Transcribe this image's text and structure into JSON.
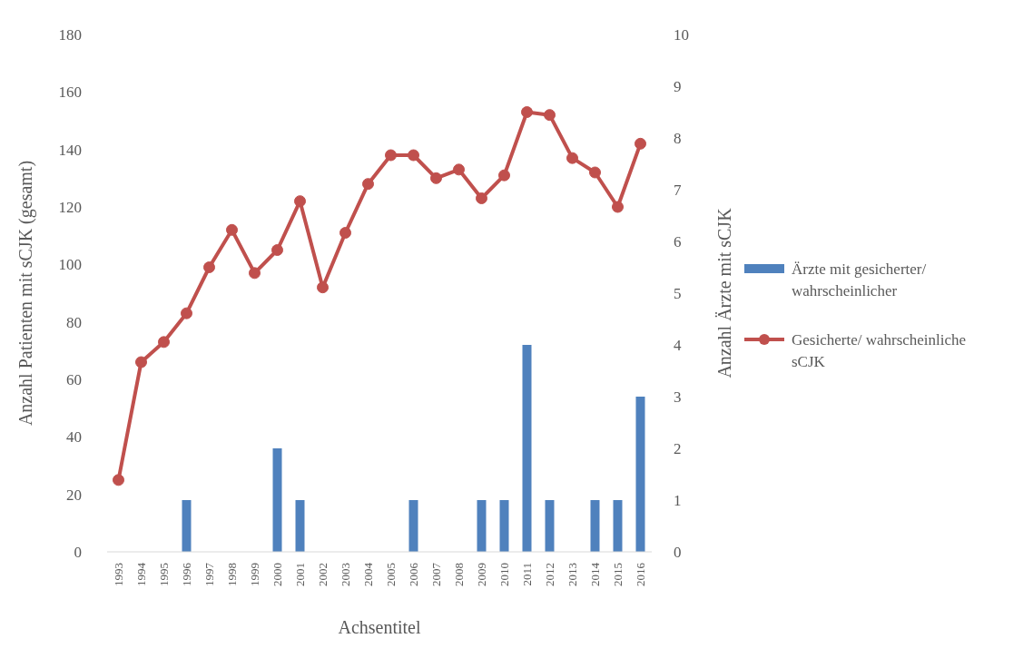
{
  "chart_data": {
    "type": "bar",
    "xlabel": "Achsentitel",
    "ylabel": "Anzahl Patienten mit sCJK (gesamt)",
    "y2label": "Anzahl Ärzte mit sCJK",
    "categories": [
      "1993",
      "1994",
      "1995",
      "1996",
      "1997",
      "1998",
      "1999",
      "2000",
      "2001",
      "2002",
      "2003",
      "2004",
      "2005",
      "2006",
      "2007",
      "2008",
      "2009",
      "2010",
      "2011",
      "2012",
      "2013",
      "2014",
      "2015",
      "2016"
    ],
    "series": [
      {
        "name": "Ärzte mit gesicherter/ wahrscheinlicher",
        "axis": "y2",
        "color": "#4f81bd",
        "values": [
          0,
          0,
          0,
          1,
          0,
          0,
          0,
          2,
          1,
          0,
          0,
          0,
          0,
          1,
          0,
          0,
          1,
          1,
          4,
          1,
          0,
          1,
          1,
          3
        ]
      },
      {
        "name": "Gesicherte/ wahrscheinliche sCJK",
        "type": "line",
        "axis": "y",
        "color": "#c0504d",
        "marker": "circle",
        "values": [
          25,
          66,
          73,
          83,
          99,
          112,
          97,
          105,
          122,
          92,
          111,
          128,
          138,
          138,
          130,
          133,
          123,
          131,
          153,
          152,
          137,
          132,
          120,
          142
        ]
      }
    ],
    "ylim": [
      0,
      180
    ],
    "yticks": [
      0,
      20,
      40,
      60,
      80,
      100,
      120,
      140,
      160,
      180
    ],
    "y2lim": [
      0,
      10
    ],
    "y2ticks": [
      0,
      1,
      2,
      3,
      4,
      5,
      6,
      7,
      8,
      9,
      10
    ],
    "legend": "right"
  }
}
